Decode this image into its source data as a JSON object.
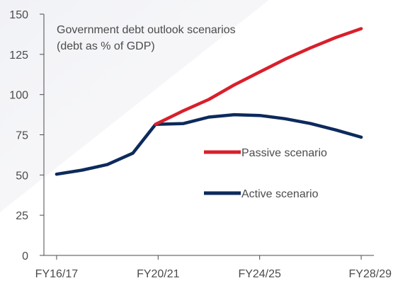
{
  "chart_data": {
    "type": "line",
    "annotation_lines": [
      "Government debt outlook scenarios",
      "(debt as % of GDP)"
    ],
    "x_tick_labels": [
      "FY16/17",
      "FY20/21",
      "FY24/25",
      "FY28/29"
    ],
    "y_ticks": [
      0,
      25,
      50,
      75,
      100,
      125,
      150
    ],
    "ylim": [
      0,
      150
    ],
    "grid": false,
    "legend_position": "center-right",
    "series": [
      {
        "name": "Passive scenario",
        "color": "#d7202b",
        "points": [
          {
            "t": 2020.4,
            "v": 81.5
          },
          {
            "t": 2021.5,
            "v": 90
          },
          {
            "t": 2022.5,
            "v": 97
          },
          {
            "t": 2023.5,
            "v": 106
          },
          {
            "t": 2024.5,
            "v": 114
          },
          {
            "t": 2025.5,
            "v": 122
          },
          {
            "t": 2026.5,
            "v": 129
          },
          {
            "t": 2027.5,
            "v": 135.5
          },
          {
            "t": 2028.5,
            "v": 141
          }
        ]
      },
      {
        "name": "Active scenario",
        "color": "#0d2a5c",
        "points": [
          {
            "t": 2016.5,
            "v": 50.5
          },
          {
            "t": 2017.5,
            "v": 53
          },
          {
            "t": 2018.5,
            "v": 56.5
          },
          {
            "t": 2019.5,
            "v": 63.5
          },
          {
            "t": 2020.4,
            "v": 81.5
          },
          {
            "t": 2021.5,
            "v": 82
          },
          {
            "t": 2022.5,
            "v": 86
          },
          {
            "t": 2023.5,
            "v": 87.5
          },
          {
            "t": 2024.5,
            "v": 87
          },
          {
            "t": 2025.5,
            "v": 85
          },
          {
            "t": 2026.5,
            "v": 82
          },
          {
            "t": 2027.5,
            "v": 78
          },
          {
            "t": 2028.5,
            "v": 73.5
          }
        ]
      }
    ]
  }
}
